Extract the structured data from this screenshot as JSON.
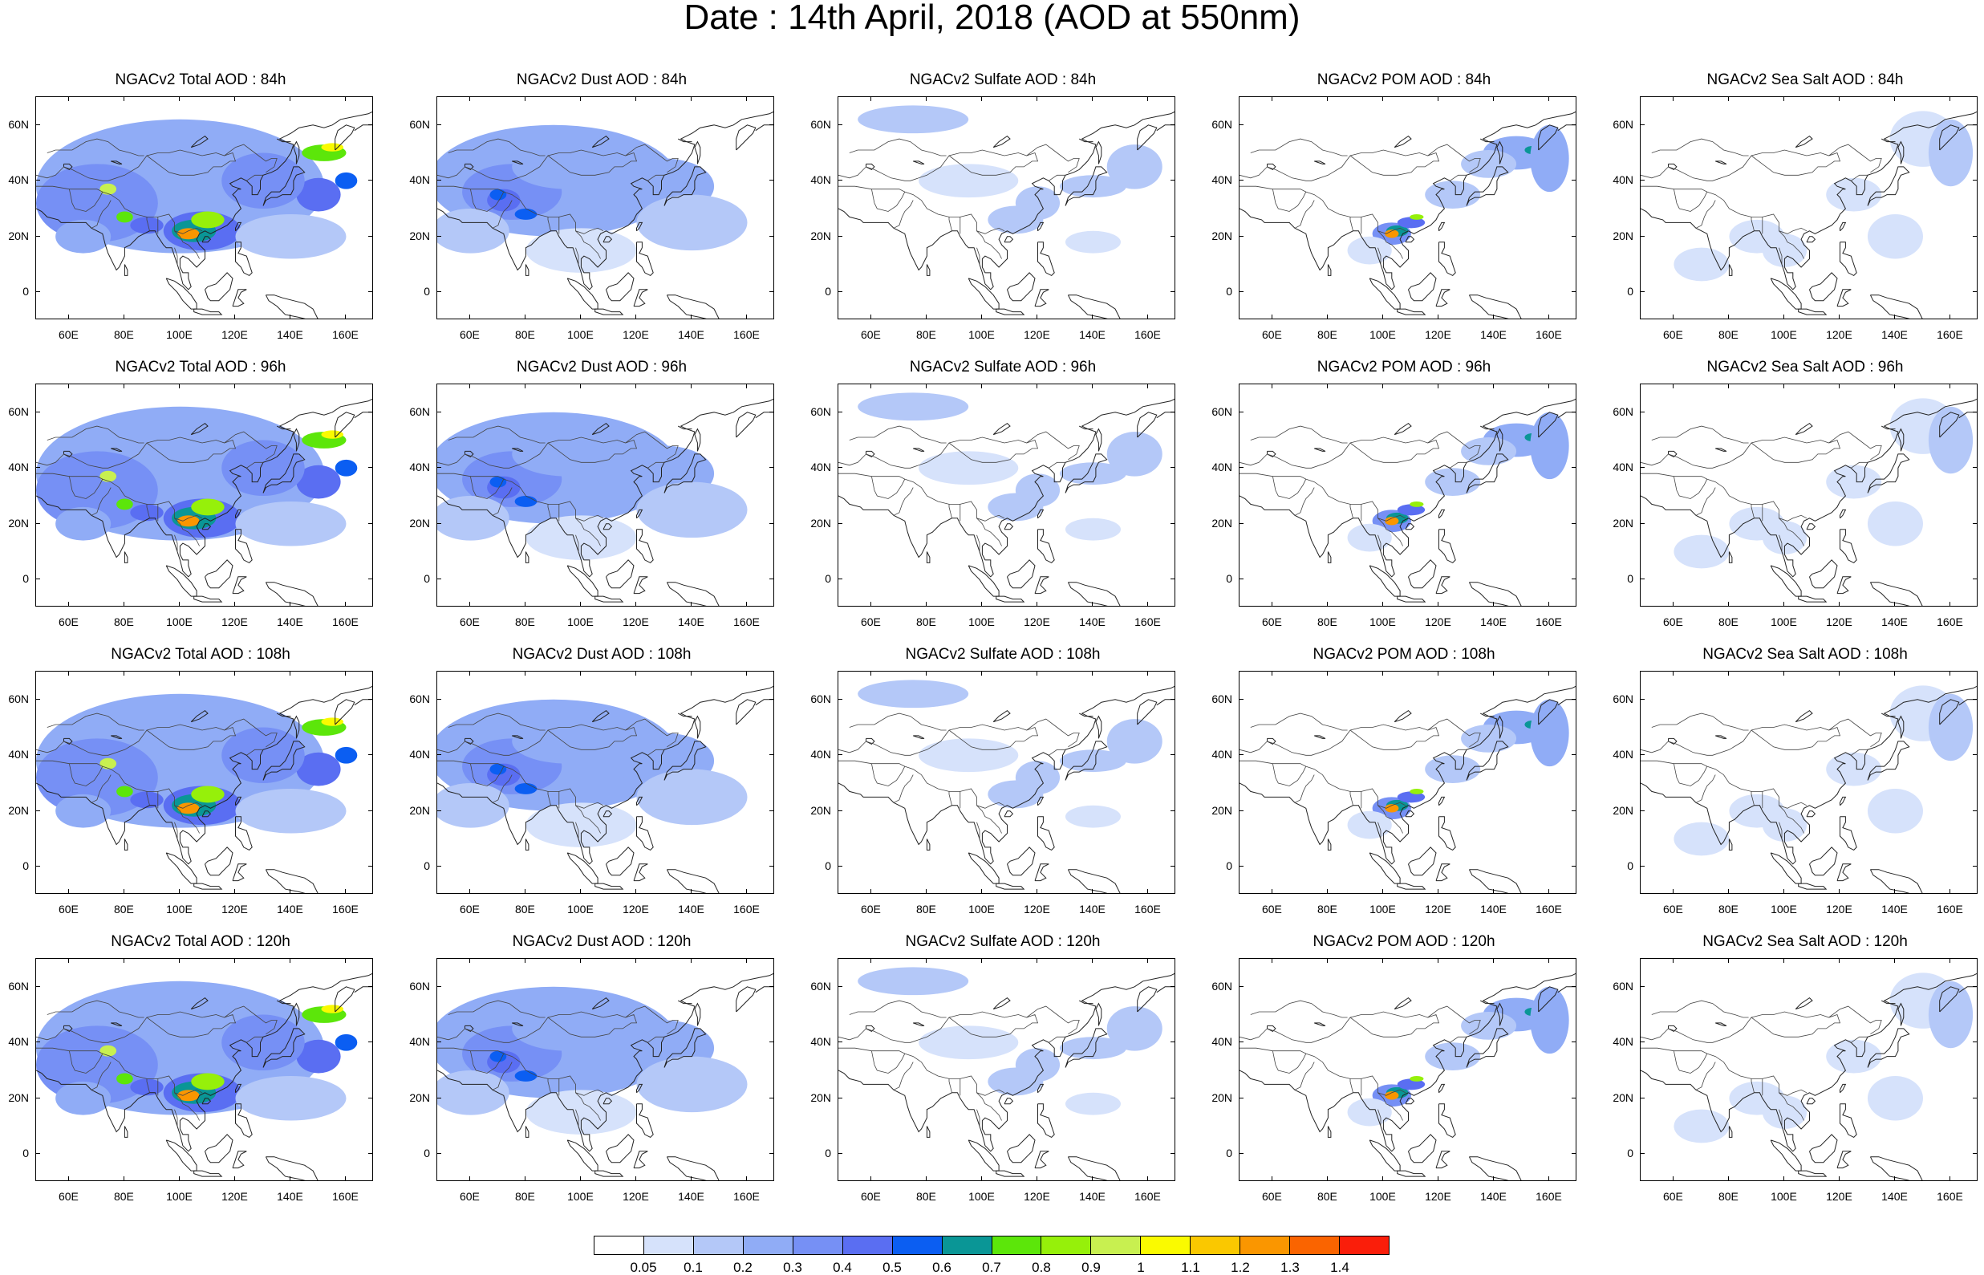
{
  "title": "Date : 14th April, 2018 (AOD at 550nm)",
  "x_tick_labels": [
    "60E",
    "80E",
    "100E",
    "120E",
    "140E",
    "160E"
  ],
  "y_tick_labels": [
    "60N",
    "40N",
    "20N",
    "0"
  ],
  "panels": [
    {
      "title": "NGACv2 Total AOD : 84h",
      "species": "total"
    },
    {
      "title": "NGACv2 Dust AOD : 84h",
      "species": "dust"
    },
    {
      "title": "NGACv2 Sulfate AOD : 84h",
      "species": "sulfate"
    },
    {
      "title": "NGACv2 POM AOD : 84h",
      "species": "pom"
    },
    {
      "title": "NGACv2 Sea Salt AOD : 84h",
      "species": "seasalt"
    },
    {
      "title": "NGACv2 Total AOD : 96h",
      "species": "total"
    },
    {
      "title": "NGACv2 Dust AOD : 96h",
      "species": "dust"
    },
    {
      "title": "NGACv2 Sulfate AOD : 96h",
      "species": "sulfate"
    },
    {
      "title": "NGACv2 POM AOD : 96h",
      "species": "pom"
    },
    {
      "title": "NGACv2 Sea Salt AOD : 96h",
      "species": "seasalt"
    },
    {
      "title": "NGACv2 Total AOD : 108h",
      "species": "total"
    },
    {
      "title": "NGACv2 Dust AOD : 108h",
      "species": "dust"
    },
    {
      "title": "NGACv2 Sulfate AOD : 108h",
      "species": "sulfate"
    },
    {
      "title": "NGACv2 POM AOD : 108h",
      "species": "pom"
    },
    {
      "title": "NGACv2 Sea Salt AOD : 108h",
      "species": "seasalt"
    },
    {
      "title": "NGACv2 Total AOD : 120h",
      "species": "total"
    },
    {
      "title": "NGACv2 Dust AOD : 120h",
      "species": "dust"
    },
    {
      "title": "NGACv2 Sulfate AOD : 120h",
      "species": "sulfate"
    },
    {
      "title": "NGACv2 POM AOD : 120h",
      "species": "pom"
    },
    {
      "title": "NGACv2 Sea Salt  AOD : 120h",
      "species": "seasalt"
    }
  ],
  "colorbar": {
    "labels": [
      "0.05",
      "0.1",
      "0.2",
      "0.3",
      "0.4",
      "0.5",
      "0.6",
      "0.7",
      "0.8",
      "0.9",
      "1",
      "1.1",
      "1.2",
      "1.3",
      "1.4"
    ],
    "colors": [
      "#ffffff",
      "#d6e2fb",
      "#b4c8f8",
      "#90acf6",
      "#7690f5",
      "#5a6ef2",
      "#0b5ef2",
      "#0a9696",
      "#5ce60a",
      "#96f00a",
      "#c8f050",
      "#fafa00",
      "#fac800",
      "#fa9600",
      "#fa6400",
      "#fa1e0a"
    ]
  }
}
